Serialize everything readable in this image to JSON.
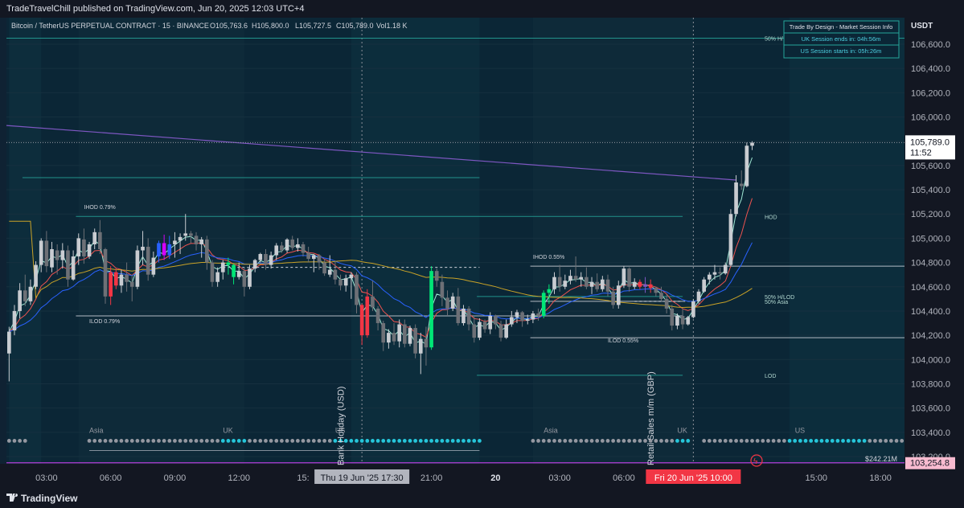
{
  "header": {
    "published_text": "TradeTravelChill published on TradingView.com, Jun 20, 2025 12:03 UTC+4"
  },
  "legend": {
    "symbol": "Bitcoin / TetherUS PERPETUAL CONTRACT · 15 · BINANCE",
    "open": "O105,763.6",
    "high": "H105,800.0",
    "low": "L105,727.5",
    "close": "C105,789.0",
    "volume": "Vol1.18 K"
  },
  "info_box": {
    "title": "Trade By Design - Market Session Info",
    "uk_line": "UK Session ends in: 04h:56m",
    "us_line": "US Session starts in: 05h:26m"
  },
  "footer": {
    "brand": "TradingView"
  },
  "chart_data": {
    "type": "candlestick",
    "currency": "USDT",
    "y_ticks": [
      103200,
      103400,
      103600,
      103800,
      104000,
      104200,
      104400,
      104600,
      104800,
      105000,
      105200,
      105400,
      105600,
      105800,
      106000,
      106200,
      106400,
      106600
    ],
    "y_tick_labels": [
      "103,200.0",
      "103,400.0",
      "103,600.0",
      "103,800.0",
      "104,000.0",
      "104,200.0",
      "104,400.0",
      "104,600.0",
      "104,800.0",
      "105,000.0",
      "105,200.0",
      "105,400.0",
      "105,600.0",
      "105,800.0",
      "106,000.0",
      "106,200.0",
      "106,400.0",
      "106,600.0"
    ],
    "x_ticks": [
      {
        "label": "03:00",
        "bar": 7
      },
      {
        "label": "06:00",
        "bar": 19
      },
      {
        "label": "09:00",
        "bar": 31
      },
      {
        "label": "12:00",
        "bar": 43
      },
      {
        "label": "15:",
        "bar": 55
      },
      {
        "label": "21:00",
        "bar": 79
      },
      {
        "label": "20",
        "bar": 91
      },
      {
        "label": "03:00",
        "bar": 103
      },
      {
        "label": "06:00",
        "bar": 115
      },
      {
        "label": "10:00",
        "bar": 131
      },
      {
        "label": "15:00",
        "bar": 151
      },
      {
        "label": "18:00",
        "bar": 163
      }
    ],
    "crosshair_x_label": {
      "label": "Thu 19 Jun '25   17:30",
      "bar": 66
    },
    "current_x_label": {
      "label": "Fri 20 Jun '25   10:00",
      "bar": 128
    },
    "last_price": {
      "value": 105789.0,
      "label": "105,789.0",
      "countdown": "11:52"
    },
    "low_marker": {
      "value": 103254.8,
      "label": "103,254.8"
    },
    "volume_label": "$242.21M",
    "ohlc": [
      [
        104050,
        104270,
        103820,
        104230
      ],
      [
        104240,
        104450,
        104200,
        104400
      ],
      [
        104400,
        104630,
        104340,
        104570
      ],
      [
        104570,
        104700,
        104440,
        104480
      ],
      [
        104480,
        104660,
        104450,
        104600
      ],
      [
        104600,
        104810,
        104580,
        104780
      ],
      [
        104780,
        105000,
        104720,
        104980
      ],
      [
        104980,
        105060,
        104720,
        104770
      ],
      [
        104760,
        104970,
        104720,
        104910
      ],
      [
        104900,
        104950,
        104700,
        104820
      ],
      [
        104820,
        104960,
        104750,
        104900
      ],
      [
        104900,
        104940,
        104600,
        104660
      ],
      [
        104660,
        104900,
        104650,
        104850
      ],
      [
        104850,
        105040,
        104780,
        105000
      ],
      [
        104990,
        105080,
        104790,
        104850
      ],
      [
        104850,
        104970,
        104830,
        104950
      ],
      [
        104950,
        105080,
        104910,
        105050
      ],
      [
        105050,
        105150,
        104870,
        104910
      ],
      [
        104910,
        104920,
        104460,
        104520
      ],
      [
        104520,
        104770,
        104450,
        104720
      ],
      [
        104720,
        104750,
        104580,
        104610
      ],
      [
        104610,
        104740,
        104550,
        104700
      ],
      [
        104700,
        104800,
        104560,
        104640
      ],
      [
        104640,
        104700,
        104480,
        104600
      ],
      [
        104600,
        104940,
        104580,
        104900
      ],
      [
        104900,
        105060,
        104780,
        104930
      ],
      [
        104930,
        105000,
        104650,
        104700
      ],
      [
        104700,
        104890,
        104680,
        104840
      ],
      [
        104850,
        104980,
        104800,
        104960
      ],
      [
        104960,
        105030,
        104820,
        104860
      ],
      [
        104860,
        105020,
        104830,
        104950
      ],
      [
        104950,
        105050,
        104840,
        104980
      ],
      [
        104980,
        105040,
        104870,
        105010
      ],
      [
        105020,
        105200,
        104980,
        105040
      ],
      [
        105040,
        105060,
        104960,
        105020
      ],
      [
        105020,
        105050,
        104900,
        104950
      ],
      [
        104950,
        105010,
        104840,
        104990
      ],
      [
        104990,
        105020,
        104740,
        104800
      ],
      [
        104800,
        104820,
        104600,
        104640
      ],
      [
        104640,
        104760,
        104600,
        104720
      ],
      [
        104720,
        104820,
        104660,
        104800
      ],
      [
        104800,
        104840,
        104700,
        104780
      ],
      [
        104780,
        104790,
        104620,
        104680
      ],
      [
        104680,
        104800,
        104660,
        104730
      ],
      [
        104730,
        104760,
        104520,
        104600
      ],
      [
        104600,
        104780,
        104580,
        104750
      ],
      [
        104750,
        104830,
        104720,
        104820
      ],
      [
        104820,
        104880,
        104800,
        104870
      ],
      [
        104870,
        104910,
        104740,
        104780
      ],
      [
        104780,
        104890,
        104750,
        104860
      ],
      [
        104860,
        104960,
        104820,
        104940
      ],
      [
        104940,
        104970,
        104880,
        104900
      ],
      [
        104900,
        105000,
        104880,
        104990
      ],
      [
        104990,
        105020,
        104900,
        104920
      ],
      [
        104920,
        105000,
        104890,
        104950
      ],
      [
        104950,
        104970,
        104850,
        104880
      ],
      [
        104880,
        104930,
        104800,
        104830
      ],
      [
        104830,
        104870,
        104720,
        104860
      ],
      [
        104860,
        104870,
        104740,
        104800
      ],
      [
        104800,
        104830,
        104690,
        104710
      ],
      [
        104700,
        104860,
        104680,
        104740
      ],
      [
        104740,
        104810,
        104620,
        104660
      ],
      [
        104660,
        104700,
        104570,
        104610
      ],
      [
        104610,
        104700,
        104560,
        104670
      ],
      [
        104670,
        104720,
        104500,
        104700
      ],
      [
        104700,
        104720,
        104380,
        104450
      ],
      [
        104450,
        104460,
        104120,
        104200
      ],
      [
        104200,
        104580,
        104180,
        104520
      ],
      [
        104520,
        104650,
        104400,
        104430
      ],
      [
        104420,
        104440,
        104240,
        104300
      ],
      [
        104300,
        104320,
        104070,
        104140
      ],
      [
        104140,
        104250,
        104090,
        104220
      ],
      [
        104220,
        104300,
        104120,
        104150
      ],
      [
        104150,
        104330,
        104100,
        104290
      ],
      [
        104290,
        104330,
        104100,
        104130
      ],
      [
        104130,
        104280,
        104110,
        104260
      ],
      [
        104260,
        104290,
        104010,
        104050
      ],
      [
        104050,
        104220,
        103880,
        104170
      ],
      [
        104170,
        104270,
        103950,
        104100
      ],
      [
        104100,
        104770,
        104080,
        104730
      ],
      [
        104730,
        104750,
        104600,
        104650
      ],
      [
        104640,
        104700,
        104440,
        104510
      ],
      [
        104510,
        104570,
        104360,
        104420
      ],
      [
        104420,
        104550,
        104400,
        104520
      ],
      [
        104520,
        104590,
        104280,
        104300
      ],
      [
        104300,
        104450,
        104280,
        104420
      ],
      [
        104420,
        104440,
        104240,
        104290
      ],
      [
        104290,
        104360,
        104140,
        104180
      ],
      [
        104180,
        104340,
        104160,
        104310
      ],
      [
        104310,
        104330,
        104220,
        104250
      ],
      [
        104250,
        104390,
        104210,
        104360
      ],
      [
        104360,
        104370,
        104250,
        104290
      ],
      [
        104290,
        104320,
        104150,
        104180
      ],
      [
        104180,
        104330,
        104170,
        104290
      ],
      [
        104290,
        104400,
        104270,
        104350
      ],
      [
        104350,
        104410,
        104300,
        104390
      ],
      [
        104390,
        104400,
        104270,
        104320
      ],
      [
        104320,
        104370,
        104290,
        104330
      ],
      [
        104330,
        104400,
        104300,
        104380
      ],
      [
        104380,
        104420,
        104320,
        104360
      ],
      [
        104360,
        104570,
        104340,
        104550
      ],
      [
        104550,
        104620,
        104460,
        104580
      ],
      [
        104580,
        104720,
        104540,
        104680
      ],
      [
        104680,
        104780,
        104560,
        104600
      ],
      [
        104600,
        104700,
        104580,
        104650
      ],
      [
        104650,
        104740,
        104620,
        104690
      ],
      [
        104690,
        104850,
        104640,
        104660
      ],
      [
        104660,
        104720,
        104600,
        104680
      ],
      [
        104680,
        104760,
        104580,
        104600
      ],
      [
        104600,
        104680,
        104540,
        104640
      ],
      [
        104640,
        104710,
        104560,
        104580
      ],
      [
        104580,
        104690,
        104560,
        104660
      ],
      [
        104660,
        104700,
        104520,
        104560
      ],
      [
        104560,
        104600,
        104420,
        104450
      ],
      [
        104450,
        104650,
        104420,
        104610
      ],
      [
        104610,
        104770,
        104590,
        104750
      ],
      [
        104750,
        104760,
        104560,
        104600
      ],
      [
        104600,
        104670,
        104580,
        104640
      ],
      [
        104640,
        104660,
        104580,
        104600
      ],
      [
        104600,
        104680,
        104550,
        104620
      ],
      [
        104620,
        104660,
        104550,
        104590
      ],
      [
        104590,
        104600,
        104520,
        104550
      ],
      [
        104550,
        104600,
        104480,
        104500
      ],
      [
        104500,
        104540,
        104380,
        104420
      ],
      [
        104420,
        104450,
        104240,
        104280
      ],
      [
        104280,
        104380,
        104250,
        104360
      ],
      [
        104360,
        104420,
        104250,
        104290
      ],
      [
        104290,
        104360,
        104280,
        104350
      ],
      [
        104350,
        104500,
        104340,
        104480
      ],
      [
        104480,
        104580,
        104460,
        104560
      ],
      [
        104560,
        104680,
        104550,
        104660
      ],
      [
        104660,
        104720,
        104620,
        104700
      ],
      [
        104700,
        104780,
        104660,
        104720
      ],
      [
        104720,
        104760,
        104660,
        104710
      ],
      [
        104710,
        104800,
        104700,
        104780
      ],
      [
        104780,
        105240,
        104770,
        105200
      ],
      [
        105200,
        105520,
        105180,
        105460
      ],
      [
        105450,
        105560,
        105400,
        105430
      ],
      [
        105430,
        105790,
        105420,
        105763
      ],
      [
        105763,
        105800,
        105727,
        105789
      ]
    ],
    "total_bars": 168,
    "horizontal_levels": [
      {
        "value": 106650,
        "label": "50% H/LOD",
        "color": "#26a69a",
        "from_bar": 0,
        "to_bar": 168
      },
      {
        "value": 105500,
        "label": "",
        "color": "#26a69a",
        "from_bar": 3,
        "to_bar": 88
      },
      {
        "value": 105180,
        "label": "HOD",
        "color": "#26a69a",
        "from_bar": 13,
        "to_bar": 126
      },
      {
        "value": 104360,
        "label": "",
        "color": "#d1d4dc",
        "from_bar": 13,
        "to_bar": 126
      },
      {
        "value": 104770,
        "label": "",
        "color": "#d1d4dc",
        "from_bar": 98,
        "to_bar": 168
      },
      {
        "value": 104520,
        "label": "50% H/LOD",
        "color": "#26a69a",
        "from_bar": 88,
        "to_bar": 126
      },
      {
        "value": 104480,
        "label": "50% Asia",
        "color": "#d1d4dc",
        "from_bar": 98,
        "to_bar": 126
      },
      {
        "value": 104180,
        "label": "",
        "color": "#d1d4dc",
        "from_bar": 98,
        "to_bar": 168
      },
      {
        "value": 103870,
        "label": "LOD",
        "color": "#26a69a",
        "from_bar": 88,
        "to_bar": 126
      }
    ],
    "level_labels": [
      {
        "text": "IHOD 0.79%",
        "bar": 14,
        "value": 105240
      },
      {
        "text": "ILOD 0.79%",
        "bar": 15,
        "value": 104300
      },
      {
        "text": "IHOD 0.55%",
        "bar": 98,
        "value": 104830
      },
      {
        "text": "ILOD 0.55%",
        "bar": 112,
        "value": 104140
      }
    ],
    "session_labels": [
      {
        "text": "Asia",
        "bar": 15
      },
      {
        "text": "UK",
        "bar": 40
      },
      {
        "text": "US",
        "bar": 61
      },
      {
        "text": "Asia",
        "bar": 100
      },
      {
        "text": "UK",
        "bar": 125
      },
      {
        "text": "US",
        "bar": 147
      }
    ],
    "event_labels": [
      {
        "text": "Bank Holiday (USD)",
        "bar": 62
      },
      {
        "text": "Retail Sales m/m (GBP)",
        "bar": 120
      }
    ]
  }
}
